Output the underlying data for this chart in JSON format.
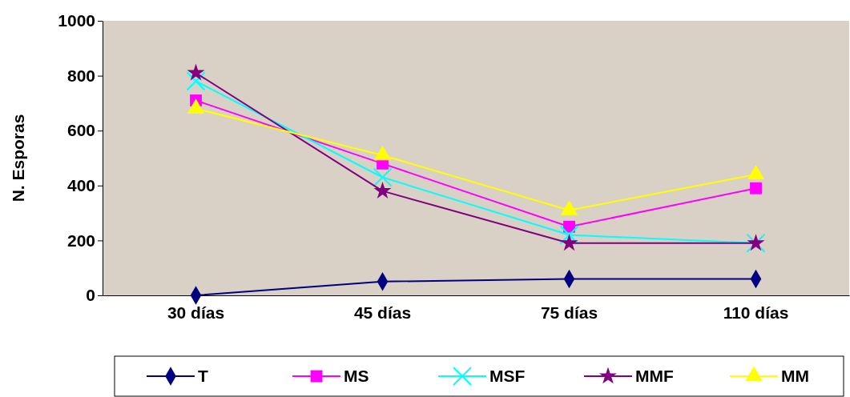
{
  "chart_data": {
    "type": "line",
    "ylabel": "N. Esporas",
    "categories": [
      "30 días",
      "45 días",
      "75 días",
      "110 días"
    ],
    "ylim": [
      0,
      1000
    ],
    "yticks": [
      0,
      200,
      400,
      600,
      800,
      1000
    ],
    "grid": false,
    "legend": "bottom",
    "series": [
      {
        "name": "T",
        "color": "#000080",
        "marker": "diamond",
        "values": [
          0,
          50,
          60,
          60
        ]
      },
      {
        "name": "MS",
        "color": "#ff00ff",
        "marker": "square",
        "values": [
          710,
          480,
          250,
          390
        ]
      },
      {
        "name": "MSF",
        "color": "#00ffff",
        "marker": "cross",
        "values": [
          780,
          430,
          220,
          190
        ]
      },
      {
        "name": "MMF",
        "color": "#800080",
        "marker": "star",
        "values": [
          810,
          380,
          190,
          190
        ]
      },
      {
        "name": "MM",
        "color": "#ffff00",
        "marker": "triangle",
        "values": [
          680,
          510,
          310,
          440
        ]
      }
    ]
  }
}
